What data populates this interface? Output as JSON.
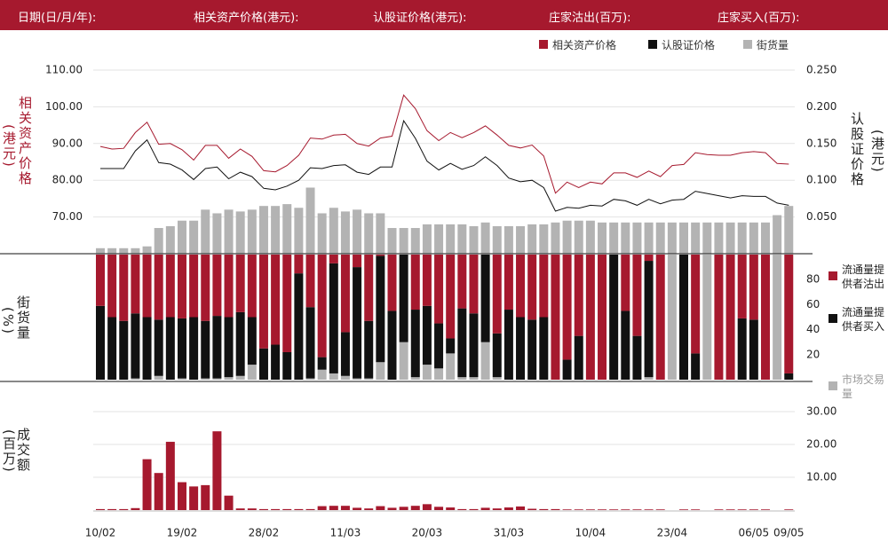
{
  "header": [
    "日期(日/月/年):",
    "相关资产价格(港元):",
    "认股证价格(港元):",
    "庄家沽出(百万):",
    "庄家买入(百万):"
  ],
  "chart_data": [
    {
      "type": "line",
      "ylabel": [
        "相关资产价格",
        "(港元)"
      ],
      "y2label": [
        "认股证价格",
        "(港元)"
      ],
      "ylim": [
        60,
        110
      ],
      "yticks": [
        {
          "value": 70,
          "label": "70.00"
        },
        {
          "value": 80,
          "label": "80.00"
        },
        {
          "value": 90,
          "label": "90.00"
        },
        {
          "value": 100,
          "label": "100.00"
        },
        {
          "value": 110,
          "label": "110.00"
        }
      ],
      "y2lim": [
        0,
        0.25
      ],
      "y2ticks": [
        {
          "value": 0.05,
          "label": "0.050"
        },
        {
          "value": 0.1,
          "label": "0.100"
        },
        {
          "value": 0.15,
          "label": "0.150"
        },
        {
          "value": 0.2,
          "label": "0.200"
        },
        {
          "value": 0.25,
          "label": "0.250"
        }
      ],
      "y3lim": [
        0,
        100
      ],
      "grid": true,
      "series": [
        {
          "name": "相关资产价格",
          "color": "#a6192e",
          "axis": "y",
          "values": [
            89.2,
            88.5,
            88.7,
            93,
            95.8,
            89.8,
            90,
            88.3,
            85.5,
            89.5,
            89.5,
            86,
            88.5,
            86.5,
            82.6,
            82.3,
            84,
            86.8,
            91.5,
            91.2,
            92.3,
            92.5,
            90,
            89.3,
            91.5,
            92,
            103.2,
            99.5,
            93.5,
            90.8,
            93,
            91.6,
            93,
            94.8,
            92.3,
            89.5,
            88.8,
            89.6,
            86.6,
            76.5,
            79.5,
            78,
            79.5,
            79,
            82,
            82,
            80.8,
            82.5,
            81,
            84,
            84.3,
            87.5,
            87,
            86.8,
            86.8,
            87.5,
            87.8,
            87.5,
            84.6,
            84.4
          ]
        },
        {
          "name": "认股证价格",
          "color": "#111111",
          "axis": "y2",
          "values": [
            0.116,
            0.116,
            0.116,
            0.14,
            0.155,
            0.124,
            0.122,
            0.114,
            0.101,
            0.116,
            0.118,
            0.102,
            0.111,
            0.105,
            0.089,
            0.087,
            0.092,
            0.1,
            0.117,
            0.116,
            0.12,
            0.121,
            0.111,
            0.108,
            0.118,
            0.118,
            0.181,
            0.157,
            0.126,
            0.114,
            0.123,
            0.115,
            0.12,
            0.132,
            0.12,
            0.103,
            0.098,
            0.1,
            0.09,
            0.058,
            0.063,
            0.062,
            0.066,
            0.065,
            0.074,
            0.072,
            0.066,
            0.074,
            0.068,
            0.073,
            0.074,
            0.085,
            0.082,
            0.079,
            0.076,
            0.079,
            0.078,
            0.078,
            0.069,
            0.066
          ]
        },
        {
          "name": "街货量",
          "color": "#b3b3b3",
          "axis": "y3",
          "type": "bar",
          "values": [
            3,
            3,
            3,
            3,
            4,
            14,
            15,
            18,
            18,
            24,
            22,
            24,
            23,
            24,
            26,
            26,
            27,
            25,
            36,
            22,
            25,
            23,
            24,
            22,
            22,
            14,
            14,
            14,
            16,
            16,
            16,
            16,
            15,
            17,
            15,
            15,
            15,
            16,
            16,
            17,
            18,
            18,
            18,
            17,
            17,
            17,
            17,
            17,
            17,
            17,
            17,
            17,
            17,
            17,
            17,
            17,
            17,
            17,
            21,
            26
          ]
        }
      ]
    },
    {
      "type": "stacked_bar",
      "ylabel": [
        "街货量",
        "(%)"
      ],
      "ylim": [
        0,
        100
      ],
      "yticks": [
        20,
        40,
        60,
        80
      ],
      "series": [
        {
          "name": "流通量提供者沽出",
          "color": "#a6192e",
          "values": [
            41,
            50,
            53,
            47,
            50,
            52,
            50,
            51,
            50,
            53,
            49,
            50,
            46,
            50,
            75,
            72,
            78,
            15,
            42,
            82,
            7,
            62,
            10,
            53,
            1,
            45,
            0,
            44,
            41,
            55,
            67,
            43,
            47,
            0,
            63,
            44,
            50,
            52,
            50,
            100,
            84,
            65,
            100,
            100,
            0,
            45,
            65,
            5,
            100,
            0,
            0,
            79,
            0,
            100,
            100,
            51,
            52,
            100,
            0,
            95
          ]
        },
        {
          "name": "流通量提供者买入",
          "color": "#111111",
          "values": [
            59,
            50,
            47,
            52,
            50,
            45,
            50,
            48,
            50,
            46,
            50,
            48,
            51,
            38,
            25,
            28,
            22,
            85,
            57,
            10,
            88,
            35,
            89,
            46,
            85,
            55,
            70,
            54,
            47,
            36,
            12,
            55,
            51,
            70,
            35,
            56,
            50,
            48,
            50,
            0,
            16,
            35,
            0,
            0,
            100,
            55,
            35,
            93,
            0,
            0,
            100,
            21,
            0,
            0,
            0,
            49,
            48,
            0,
            0,
            5
          ]
        },
        {
          "name": "市场交易量",
          "color": "#b3b3b3",
          "values": [
            0,
            0,
            0,
            1,
            0,
            3,
            0,
            1,
            0,
            1,
            1,
            2,
            3,
            12,
            0,
            0,
            0,
            0,
            1,
            8,
            5,
            3,
            1,
            1,
            14,
            0,
            30,
            2,
            12,
            9,
            21,
            2,
            2,
            30,
            2,
            0,
            0,
            0,
            0,
            0,
            0,
            0,
            0,
            0,
            0,
            0,
            0,
            2,
            0,
            100,
            0,
            0,
            100,
            0,
            0,
            0,
            0,
            0,
            100,
            0
          ]
        }
      ]
    },
    {
      "type": "bar",
      "ylabel": [
        "成交额",
        "(百万)"
      ],
      "categories": [
        "10/02",
        null,
        null,
        null,
        null,
        null,
        null,
        "19/02",
        null,
        null,
        null,
        null,
        null,
        null,
        "28/02",
        null,
        null,
        null,
        null,
        null,
        null,
        "11/03",
        null,
        null,
        null,
        null,
        null,
        null,
        "20/03",
        null,
        null,
        null,
        null,
        null,
        null,
        "31/03",
        null,
        null,
        null,
        null,
        null,
        null,
        "10/04",
        null,
        null,
        null,
        null,
        null,
        null,
        "23/04",
        null,
        null,
        null,
        null,
        null,
        null,
        "06/05",
        null,
        null,
        "09/05"
      ],
      "values": [
        0.3,
        0.3,
        0.3,
        0.6,
        15.5,
        11.3,
        20.8,
        8.5,
        7.2,
        7.6,
        24,
        4.4,
        0.5,
        0.5,
        0.3,
        0.3,
        0.3,
        0.3,
        0.3,
        1.2,
        1.3,
        1.3,
        0.7,
        0.5,
        1.2,
        0.7,
        1,
        1.3,
        1.8,
        1,
        0.8,
        0.3,
        0.3,
        0.7,
        0.5,
        0.8,
        1.1,
        0.4,
        0.3,
        0.3,
        0.2,
        0.2,
        0.2,
        0.2,
        0.2,
        0.2,
        0.2,
        0.2,
        0.2,
        0,
        0.2,
        0.2,
        0,
        0.2,
        0.2,
        0.2,
        0.2,
        0.2,
        0,
        0.2
      ],
      "color": "#a6192e",
      "ylim": [
        0,
        30
      ],
      "yticks": [
        {
          "value": 10,
          "label": "10.00"
        },
        {
          "value": 20,
          "label": "20.00"
        },
        {
          "value": 30,
          "label": "30.00"
        }
      ],
      "grid": true
    }
  ]
}
